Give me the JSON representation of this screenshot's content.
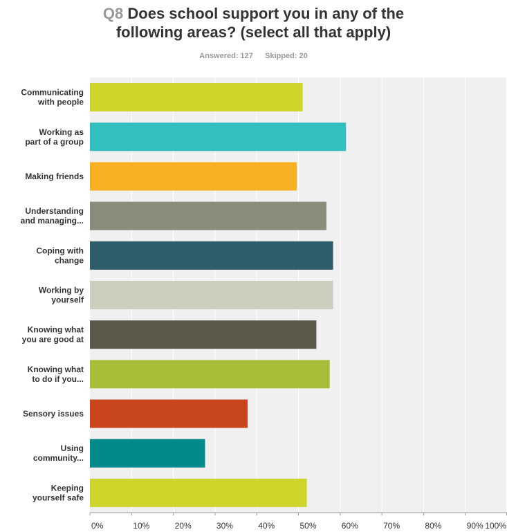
{
  "header": {
    "question_number": "Q8",
    "title_line1": "Does school support you in any of the",
    "title_line2": "following areas? (select all that apply)",
    "answered_label": "Answered: 127",
    "skipped_label": "Skipped: 20"
  },
  "chart_data": {
    "type": "bar",
    "orientation": "horizontal",
    "categories": [
      [
        "Communicating",
        "with people"
      ],
      [
        "Working as",
        "part of a group"
      ],
      [
        "Making friends"
      ],
      [
        "Understanding",
        "and managing..."
      ],
      [
        "Coping with",
        "change"
      ],
      [
        "Working by",
        "yourself"
      ],
      [
        "Knowing what",
        "you are good at"
      ],
      [
        "Knowing what",
        "to do if you..."
      ],
      [
        "Sensory issues"
      ],
      [
        "Using",
        "community..."
      ],
      [
        "Keeping",
        "yourself safe"
      ]
    ],
    "values": [
      51,
      61.4,
      49.6,
      56.7,
      58.3,
      58.3,
      54.3,
      57.5,
      37.8,
      27.6,
      52
    ],
    "colors": [
      "#cdd42a",
      "#33bfc0",
      "#f7b021",
      "#8a8b7a",
      "#2e5d6b",
      "#cecebf",
      "#5b5a4a",
      "#a8be38",
      "#c9451c",
      "#008a8a",
      "#cdd42a"
    ],
    "xlim": [
      0,
      100
    ],
    "xticks": [
      "0%",
      "10%",
      "20%",
      "30%",
      "40%",
      "50%",
      "60%",
      "70%",
      "80%",
      "90%",
      "100%"
    ],
    "grid": true,
    "background_color": "#f0f0f0"
  }
}
